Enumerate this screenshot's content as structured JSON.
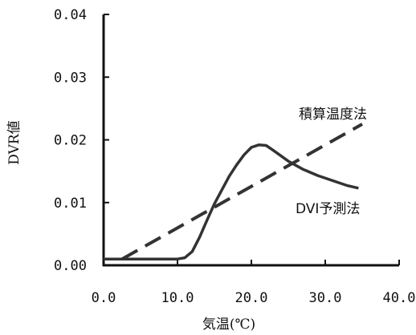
{
  "chart_data": {
    "type": "line",
    "xlabel": "気温(℃)",
    "ylabel": "DVR値",
    "xlim": [
      0,
      40
    ],
    "ylim": [
      0,
      0.04
    ],
    "x_ticks": [
      0,
      10,
      20,
      30,
      40
    ],
    "x_tick_labels": [
      "0.0",
      "10.0",
      "20.0",
      "30.0",
      "40.0"
    ],
    "y_ticks": [
      0,
      0.01,
      0.02,
      0.03,
      0.04
    ],
    "y_tick_labels": [
      "0.00",
      "0.01",
      "0.02",
      "0.03",
      "0.04"
    ],
    "grid": false,
    "series": [
      {
        "name": "積算温度法",
        "style": "dashed",
        "points": [
          [
            2.5,
            0.001
          ],
          [
            35,
            0.0225
          ]
        ]
      },
      {
        "name": "DVI予測法",
        "style": "solid",
        "points": [
          [
            0,
            0.001
          ],
          [
            10,
            0.001
          ],
          [
            11,
            0.0012
          ],
          [
            12,
            0.0022
          ],
          [
            13,
            0.0045
          ],
          [
            14,
            0.0072
          ],
          [
            15,
            0.0098
          ],
          [
            16,
            0.012
          ],
          [
            17,
            0.0142
          ],
          [
            18,
            0.016
          ],
          [
            19,
            0.0176
          ],
          [
            20,
            0.0188
          ],
          [
            21,
            0.0192
          ],
          [
            22,
            0.0191
          ],
          [
            23,
            0.0183
          ],
          [
            25,
            0.0166
          ],
          [
            27,
            0.0153
          ],
          [
            29,
            0.0143
          ],
          [
            31,
            0.0135
          ],
          [
            33,
            0.0127
          ],
          [
            34.5,
            0.0123
          ]
        ]
      }
    ]
  }
}
